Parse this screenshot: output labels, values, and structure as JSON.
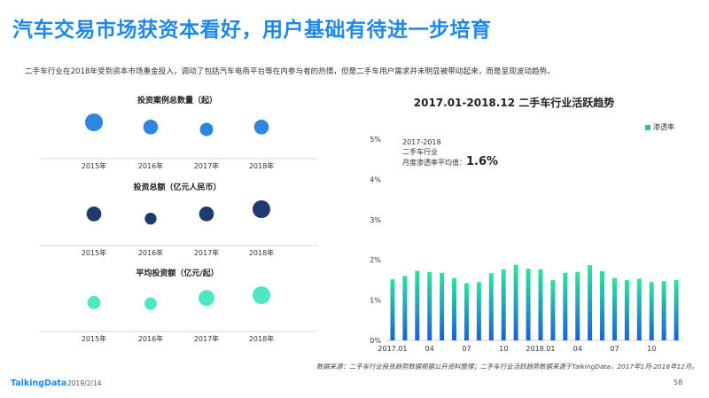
{
  "header": {
    "title": "汽车交易市场获资本看好，用户基础有待进一步培育",
    "subtitle": "二手车行业在2018年受到资本市场重金投入，调动了包括汽车电商平台等在内参与者的热情，但是二手车用户需求并未明显被带动起来，而是呈现波动趋势。"
  },
  "chart_data": [
    {
      "type": "scatter",
      "title": "投资案例总数量（起）",
      "categories": [
        "2015年",
        "2016年",
        "2017年",
        "2018年"
      ],
      "values": [
        3,
        2,
        1.5,
        2
      ],
      "color": "#2e86de"
    },
    {
      "type": "scatter",
      "title": "投资总额（亿元人民币）",
      "categories": [
        "2015年",
        "2016年",
        "2017年",
        "2018年"
      ],
      "values": [
        2,
        1,
        2,
        3
      ],
      "color": "#1f3a6e"
    },
    {
      "type": "scatter",
      "title": "平均投资额（亿元/起）",
      "categories": [
        "2015年",
        "2016年",
        "2017年",
        "2018年"
      ],
      "values": [
        1.2,
        1,
        2,
        2.5
      ],
      "color": "#4de8c2"
    },
    {
      "type": "bar",
      "title": "2017.01-2018.12  二手车行业活跃趋势",
      "legend": "渗透率",
      "legend_position": "top-right",
      "ylim": [
        0,
        5
      ],
      "yticks": [
        "0%",
        "1%",
        "2%",
        "3%",
        "4%",
        "5%"
      ],
      "xtick_labels": [
        "2017.01",
        "04",
        "07",
        "10",
        "2018.01",
        "04",
        "07",
        "10"
      ],
      "xtick_index": [
        0,
        3,
        6,
        9,
        12,
        15,
        18,
        21
      ],
      "values": [
        1.52,
        1.6,
        1.73,
        1.7,
        1.68,
        1.55,
        1.42,
        1.45,
        1.67,
        1.77,
        1.88,
        1.78,
        1.77,
        1.5,
        1.68,
        1.7,
        1.87,
        1.72,
        1.55,
        1.5,
        1.53,
        1.45,
        1.47,
        1.5
      ],
      "annotation": {
        "line1": "2017-2018",
        "line2": "二手车行业",
        "line3_prefix": "月度渗透率平均值：",
        "line3_value": "1.6%"
      }
    }
  ],
  "footer": {
    "source": "数据来源：二手车行业投资趋势数据根据公开资料整理；二手车行业活跃趋势数据来源于TalkingData，2017年1月-2018年12月。",
    "brand": "TalkingData",
    "date": "2019/2/14",
    "page": "58"
  }
}
